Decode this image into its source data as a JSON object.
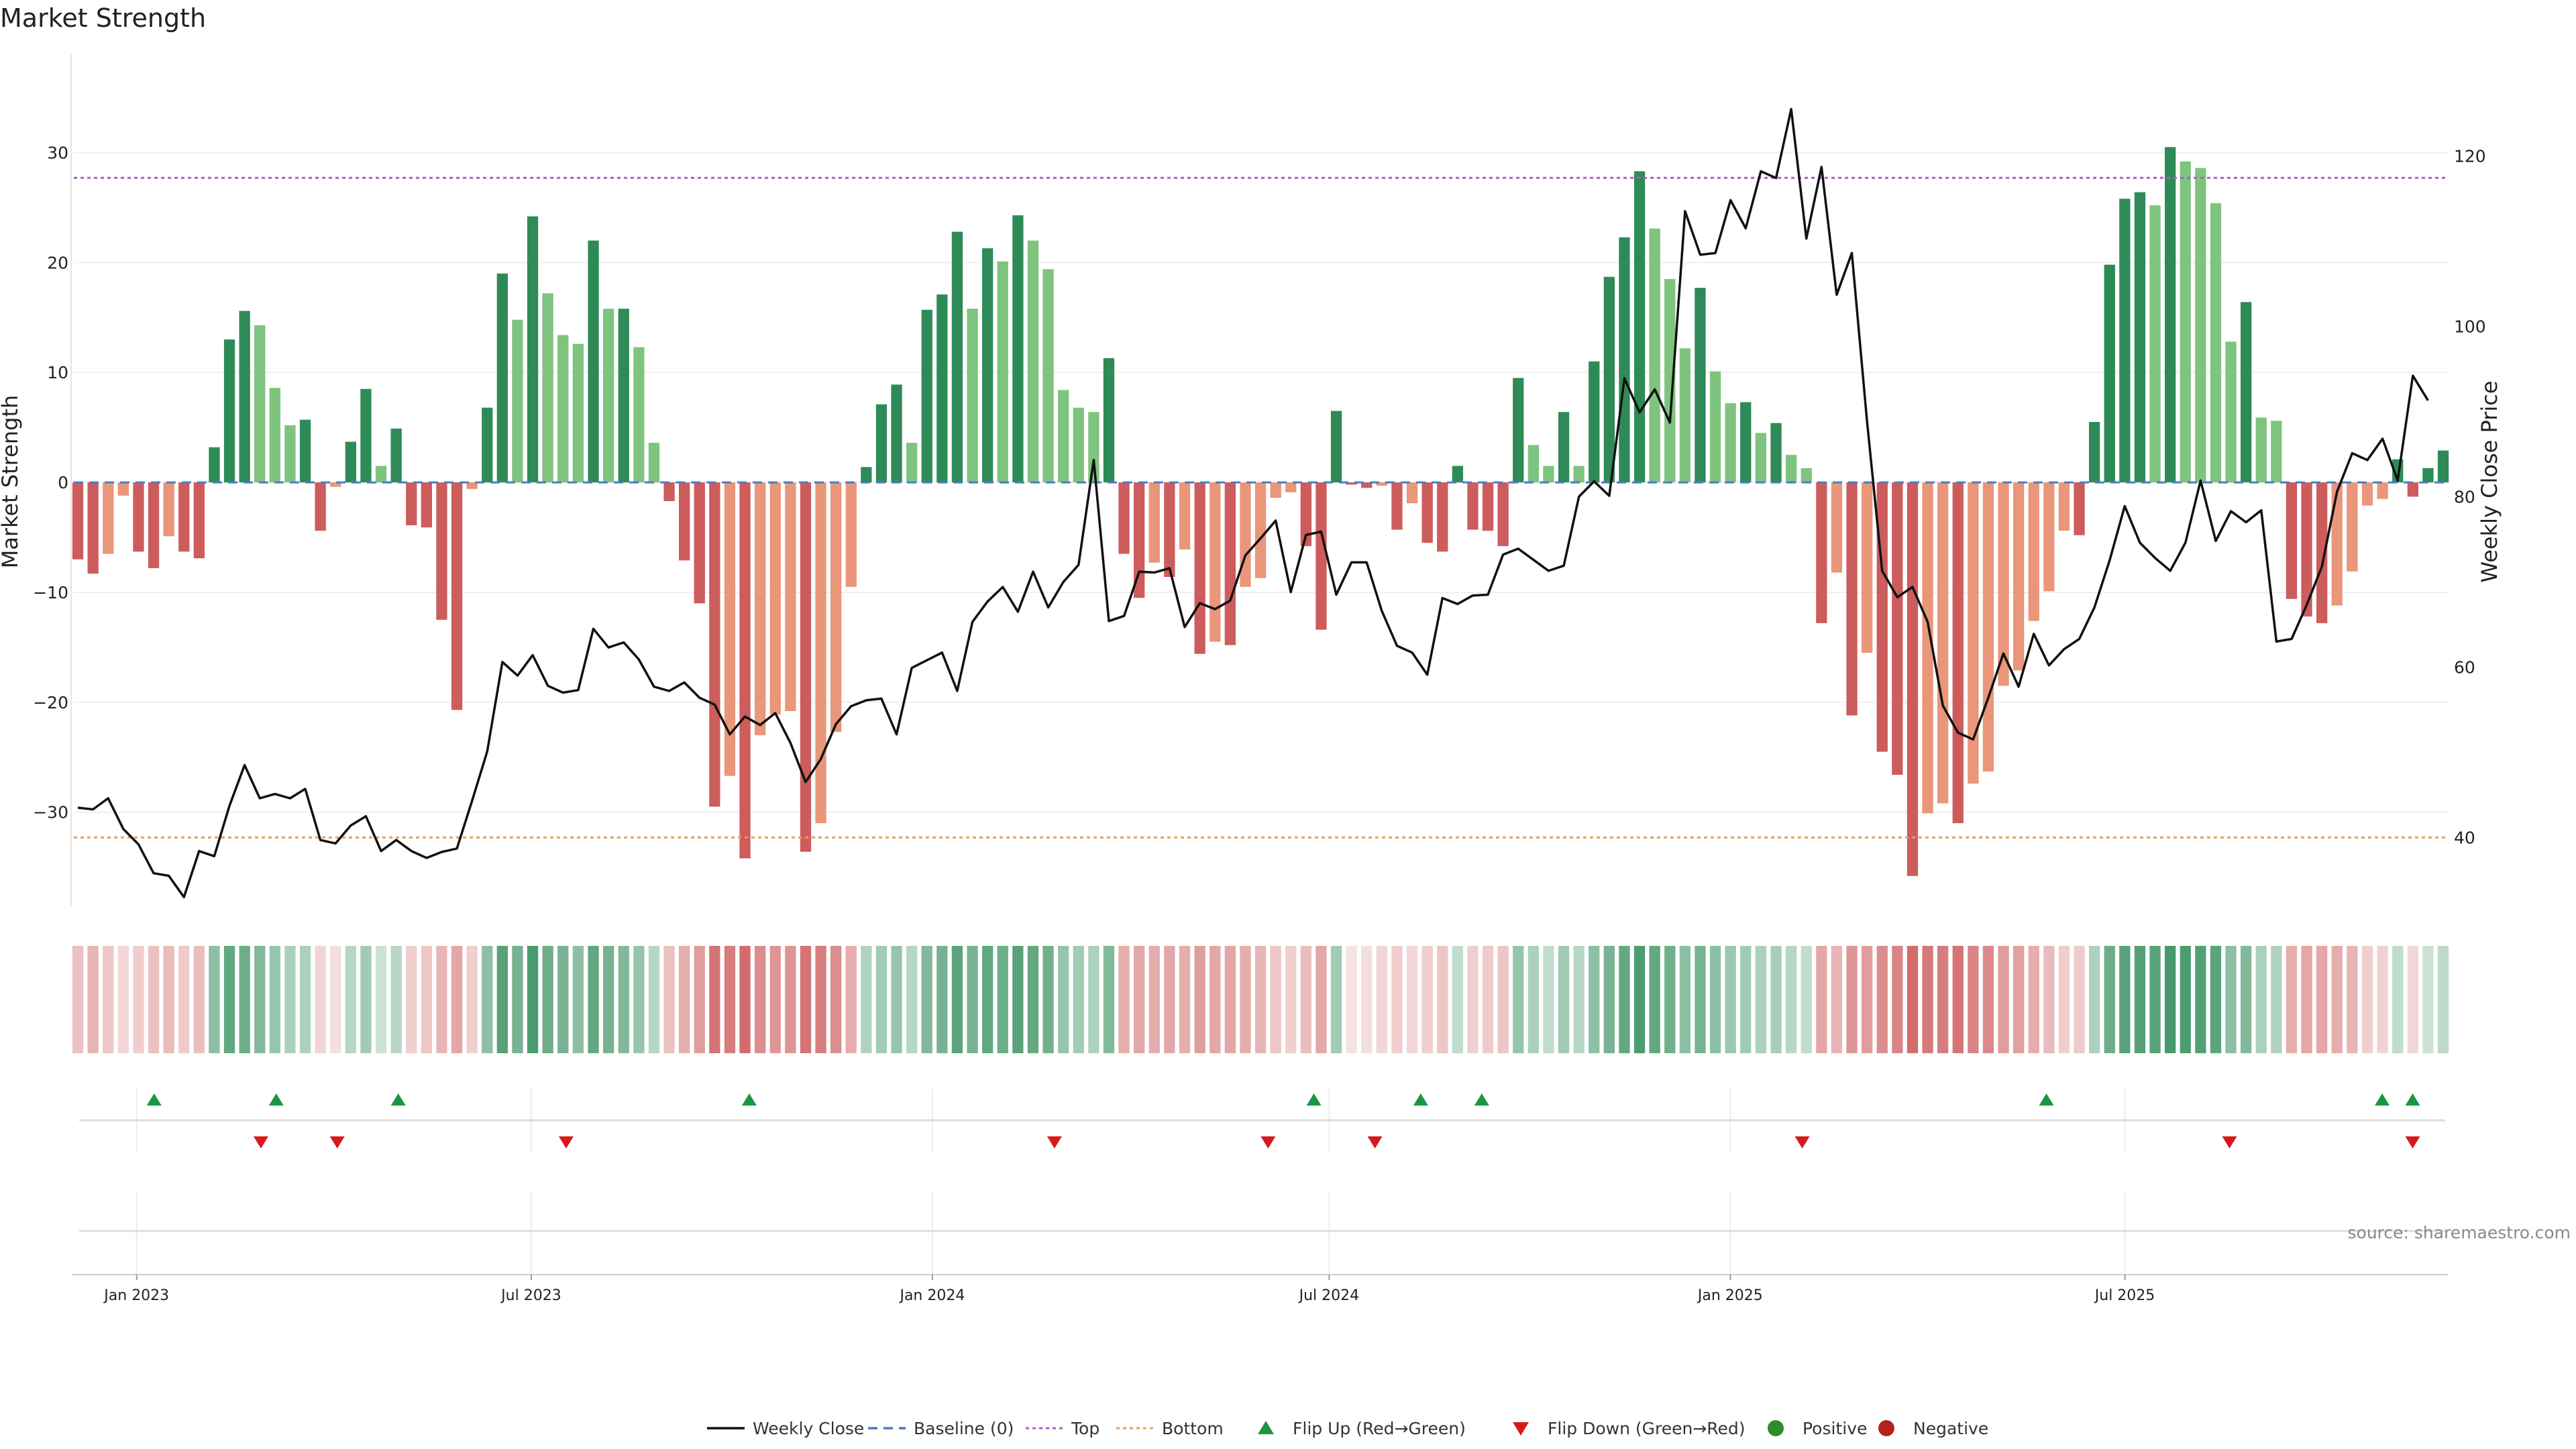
{
  "chart_data": {
    "type": "bar",
    "title": "Market Strength",
    "ylabel": "Market Strength",
    "y2label": "Weekly Close Price",
    "ylim": [
      -38.5,
      39
    ],
    "y2lim": [
      32,
      132
    ],
    "yticks": [
      30,
      20,
      10,
      0,
      -10,
      -20,
      -30
    ],
    "ytick_labels": [
      "30",
      "20",
      "10",
      "0",
      "−10",
      "−20",
      "−30"
    ],
    "y2ticks": [
      40,
      60,
      80,
      100,
      120
    ],
    "x_start": "2022-12-05",
    "x_end": "2025-11-24",
    "x_ticks": [
      {
        "date": "2023-01-01",
        "label": "Jan 2023"
      },
      {
        "date": "2023-07-01",
        "label": "Jul 2023"
      },
      {
        "date": "2024-01-01",
        "label": "Jan 2024"
      },
      {
        "date": "2024-07-01",
        "label": "Jul 2024"
      },
      {
        "date": "2025-01-01",
        "label": "Jan 2025"
      },
      {
        "date": "2025-07-01",
        "label": "Jul 2025"
      }
    ],
    "top_line": 27.7,
    "bottom_line": -32.3,
    "strength": [
      -7,
      -8.3,
      -6.5,
      -1.2,
      -6.3,
      -7.8,
      -4.9,
      -6.3,
      -6.9,
      3.2,
      13,
      15.6,
      14.3,
      8.6,
      5.2,
      5.7,
      -4.4,
      -0.4,
      3.7,
      8.5,
      1.5,
      4.9,
      -3.9,
      -4.1,
      -12.5,
      -20.7,
      -0.6,
      6.8,
      19,
      14.8,
      24.2,
      17.2,
      13.4,
      12.6,
      22,
      15.8,
      15.8,
      12.3,
      3.6,
      -1.7,
      -7.1,
      -11,
      -29.5,
      -26.7,
      -34.2,
      -23,
      -21.1,
      -20.8,
      -33.6,
      -31,
      -22.7,
      -9.5,
      1.4,
      7.1,
      8.9,
      3.6,
      15.7,
      17.1,
      22.8,
      15.8,
      21.3,
      20.1,
      24.3,
      22,
      19.4,
      8.4,
      6.8,
      6.4,
      11.3,
      -6.5,
      -10.5,
      -7.3,
      -8.6,
      -6.1,
      -15.6,
      -14.5,
      -14.8,
      -9.5,
      -8.7,
      -1.4,
      -0.9,
      -5.8,
      -13.4,
      6.5,
      -0.2,
      -0.5,
      -0.3,
      -4.3,
      -1.9,
      -5.5,
      -6.3,
      1.5,
      -4.3,
      -4.4,
      -5.8,
      9.5,
      3.4,
      1.5,
      6.4,
      1.5,
      11,
      18.7,
      22.3,
      28.3,
      23.1,
      18.5,
      12.2,
      17.7,
      10.1,
      7.2,
      7.3,
      4.5,
      5.4,
      2.5,
      1.3,
      -12.8,
      -8.2,
      -21.2,
      -15.5,
      -24.5,
      -26.6,
      -35.8,
      -30.1,
      -29.2,
      -31,
      -27.4,
      -26.3,
      -18.5,
      -17.1,
      -12.6,
      -9.9,
      -4.4,
      -4.8,
      5.5,
      19.8,
      25.8,
      26.4,
      25.2,
      30.5,
      29.2,
      28.6,
      25.4,
      12.8,
      16.4,
      5.9,
      5.6,
      -10.6,
      -12.2,
      -12.8,
      -11.2,
      -8.1,
      -2.1,
      -1.5,
      2.1,
      -1.3,
      1.3,
      2.9
    ],
    "weekly_close": [
      43.5,
      43.3,
      44.6,
      41,
      39.2,
      35.8,
      35.5,
      33,
      38.4,
      37.8,
      43.7,
      48.5,
      44.6,
      45.1,
      44.6,
      45.7,
      39.7,
      39.3,
      41.4,
      42.5,
      38.4,
      39.7,
      38.4,
      37.6,
      38.3,
      38.7,
      44.3,
      50.1,
      60.6,
      59,
      61.4,
      57.8,
      57,
      57.3,
      64.5,
      62.3,
      62.9,
      60.9,
      57.7,
      57.2,
      58.2,
      56.4,
      55.6,
      52.1,
      54.2,
      53.2,
      54.6,
      51.1,
      46.5,
      49.2,
      53.3,
      55.4,
      56.1,
      56.3,
      52.1,
      59.9,
      60.8,
      61.7,
      57.2,
      65.3,
      67.7,
      69.4,
      66.5,
      71.2,
      67,
      70,
      72,
      84.3,
      65.4,
      66,
      71.2,
      71.1,
      71.6,
      64.7,
      67.5,
      66.8,
      67.8,
      73.1,
      75.1,
      77.2,
      68.8,
      75.5,
      75.9,
      68.5,
      72.3,
      72.3,
      66.6,
      62.5,
      61.7,
      59.1,
      68.1,
      67.4,
      68.4,
      68.5,
      73.2,
      73.9,
      72.6,
      71.3,
      71.9,
      80,
      81.8,
      80.1,
      93.9,
      89.9,
      92.6,
      88.7,
      113.5,
      108.4,
      108.6,
      114.8,
      111.5,
      118.2,
      117.4,
      125.5,
      110.3,
      118.7,
      103.7,
      108.6,
      88.9,
      71.3,
      68.2,
      69.4,
      65.3,
      55.5,
      52.3,
      51.5,
      56.4,
      61.6,
      57.7,
      63.9,
      60.2,
      62.1,
      63.3,
      67,
      72.5,
      78.9,
      74.6,
      72.8,
      71.3,
      74.6,
      81.9,
      74.8,
      78.3,
      77,
      78.4,
      63,
      63.3,
      67.3,
      71.8,
      80.6,
      85.1,
      84.3,
      86.8,
      81.9,
      94.2,
      91.3
    ],
    "heat_strip_alpha": [
      0.38,
      0.45,
      0.35,
      0.25,
      0.3,
      0.38,
      0.42,
      0.32,
      0.4,
      0.55,
      0.75,
      0.7,
      0.6,
      0.5,
      0.4,
      0.4,
      0.25,
      0.2,
      0.35,
      0.45,
      0.25,
      0.35,
      0.3,
      0.35,
      0.45,
      0.55,
      0.3,
      0.55,
      0.8,
      0.65,
      0.85,
      0.7,
      0.65,
      0.55,
      0.75,
      0.65,
      0.6,
      0.5,
      0.35,
      0.38,
      0.5,
      0.6,
      0.85,
      0.8,
      0.9,
      0.7,
      0.65,
      0.65,
      0.85,
      0.8,
      0.7,
      0.5,
      0.38,
      0.45,
      0.5,
      0.35,
      0.6,
      0.65,
      0.78,
      0.65,
      0.75,
      0.7,
      0.8,
      0.75,
      0.68,
      0.5,
      0.45,
      0.4,
      0.6,
      0.5,
      0.55,
      0.5,
      0.55,
      0.5,
      0.6,
      0.55,
      0.55,
      0.5,
      0.45,
      0.35,
      0.3,
      0.4,
      0.55,
      0.45,
      0.18,
      0.2,
      0.25,
      0.3,
      0.25,
      0.3,
      0.35,
      0.3,
      0.3,
      0.32,
      0.35,
      0.5,
      0.4,
      0.3,
      0.45,
      0.35,
      0.55,
      0.65,
      0.75,
      0.85,
      0.75,
      0.68,
      0.55,
      0.65,
      0.55,
      0.48,
      0.45,
      0.4,
      0.42,
      0.35,
      0.3,
      0.55,
      0.45,
      0.65,
      0.6,
      0.7,
      0.75,
      0.9,
      0.82,
      0.8,
      0.85,
      0.75,
      0.72,
      0.6,
      0.58,
      0.5,
      0.42,
      0.3,
      0.32,
      0.4,
      0.7,
      0.8,
      0.82,
      0.8,
      0.88,
      0.85,
      0.82,
      0.78,
      0.55,
      0.6,
      0.4,
      0.38,
      0.5,
      0.55,
      0.55,
      0.5,
      0.45,
      0.3,
      0.28,
      0.3,
      0.25,
      0.25,
      0.32
    ],
    "flip_up_dates": [
      "2023-01-09",
      "2023-03-06",
      "2023-05-01",
      "2023-10-09",
      "2024-06-24",
      "2024-08-12",
      "2024-09-09",
      "2025-05-26",
      "2025-10-27",
      "2025-11-10"
    ],
    "flip_down_dates": [
      "2023-02-27",
      "2023-04-03",
      "2023-07-17",
      "2024-02-26",
      "2024-06-03",
      "2024-07-22",
      "2025-02-03",
      "2025-08-18",
      "2025-11-10"
    ],
    "colors": {
      "strong_pos": "#2e8b57",
      "weak_pos": "#7ec47e",
      "strong_neg": "#cd5c5c",
      "weak_neg": "#e9967a",
      "flip_up": "#1a9641",
      "flip_down": "#d7191c",
      "top_line": "#b05cc4",
      "bottom_line": "#e8a060",
      "baseline": "#4a7cc4",
      "positive": "#2e8b2e",
      "negative": "#b22222"
    },
    "source": "source: sharemaestro.com",
    "legend": [
      {
        "key": "close",
        "label": "Weekly Close"
      },
      {
        "key": "baseline",
        "label": "Baseline (0)"
      },
      {
        "key": "top",
        "label": "Top"
      },
      {
        "key": "bottom",
        "label": "Bottom"
      },
      {
        "key": "flipup",
        "label": "Flip Up (Red→Green)"
      },
      {
        "key": "flipdown",
        "label": "Flip Down (Green→Red)"
      },
      {
        "key": "positive",
        "label": "Positive"
      },
      {
        "key": "negative",
        "label": "Negative"
      }
    ]
  }
}
